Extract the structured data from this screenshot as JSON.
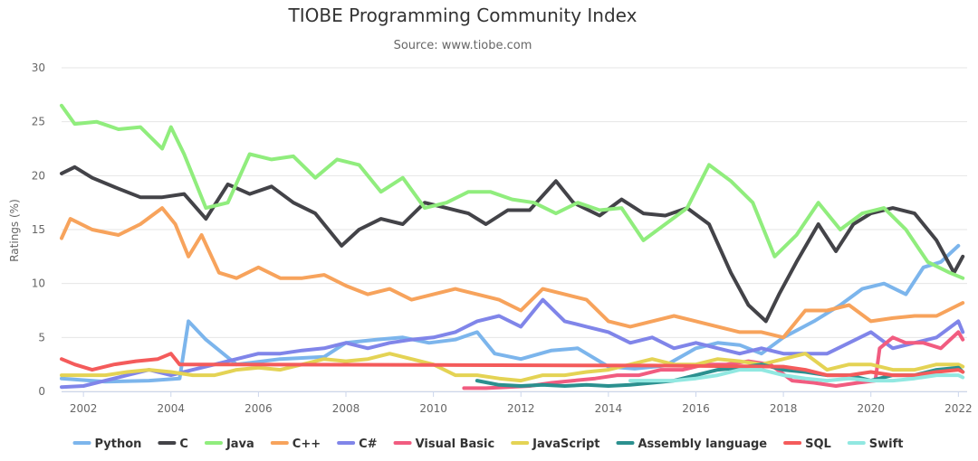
{
  "chart_data": {
    "type": "line",
    "title": "TIOBE Programming Community Index",
    "subtitle": "Source: www.tiobe.com",
    "xlabel": "",
    "ylabel": "Ratings (%)",
    "xlim": [
      2001.5,
      2022.2
    ],
    "ylim": [
      0,
      30
    ],
    "y_ticks": [
      0,
      5,
      10,
      15,
      20,
      25,
      30
    ],
    "x_ticks": [
      2002,
      2004,
      2006,
      2008,
      2010,
      2012,
      2014,
      2016,
      2018,
      2020,
      2022
    ],
    "grid": true,
    "legend_position": "bottom",
    "series": [
      {
        "name": "Python",
        "color": "#7cb5ec",
        "x": [
          2001.5,
          2002.5,
          2003.5,
          2004.2,
          2004.4,
          2004.8,
          2005.5,
          2006.5,
          2007.5,
          2008.0,
          2008.7,
          2009.3,
          2009.9,
          2010.5,
          2011.0,
          2011.4,
          2012.0,
          2012.7,
          2013.3,
          2014.0,
          2014.6,
          2015.3,
          2016.0,
          2016.5,
          2017.0,
          2017.5,
          2018.0,
          2018.7,
          2019.3,
          2019.8,
          2020.3,
          2020.8,
          2021.2,
          2021.6,
          2022.0
        ],
        "y": [
          1.2,
          0.9,
          1.0,
          1.2,
          6.5,
          4.8,
          2.5,
          3.0,
          3.2,
          4.5,
          4.8,
          5.0,
          4.5,
          4.8,
          5.5,
          3.5,
          3.0,
          3.8,
          4.0,
          2.3,
          2.1,
          2.4,
          4.0,
          4.5,
          4.3,
          3.5,
          5.0,
          6.5,
          8.0,
          9.5,
          10.0,
          9.0,
          11.5,
          12.0,
          13.5
        ]
      },
      {
        "name": "C",
        "color": "#434348",
        "x": [
          2001.5,
          2001.8,
          2002.2,
          2002.8,
          2003.3,
          2003.8,
          2004.3,
          2004.8,
          2005.3,
          2005.8,
          2006.3,
          2006.8,
          2007.3,
          2007.9,
          2008.3,
          2008.8,
          2009.3,
          2009.8,
          2010.3,
          2010.8,
          2011.2,
          2011.7,
          2012.2,
          2012.8,
          2013.2,
          2013.8,
          2014.3,
          2014.8,
          2015.3,
          2015.8,
          2016.3,
          2016.8,
          2017.2,
          2017.6,
          2017.9,
          2018.3,
          2018.8,
          2019.2,
          2019.6,
          2020.0,
          2020.5,
          2021.0,
          2021.5,
          2021.9,
          2022.1
        ],
        "y": [
          20.2,
          20.8,
          19.8,
          18.8,
          18.0,
          18.0,
          18.3,
          16.0,
          19.2,
          18.3,
          19.0,
          17.5,
          16.5,
          13.5,
          15.0,
          16.0,
          15.5,
          17.5,
          17.0,
          16.5,
          15.5,
          16.8,
          16.8,
          19.5,
          17.5,
          16.3,
          17.8,
          16.5,
          16.3,
          17.0,
          15.5,
          11.0,
          8.0,
          6.5,
          9.0,
          12.0,
          15.5,
          13.0,
          15.5,
          16.5,
          17.0,
          16.5,
          14.0,
          11.0,
          12.5
        ]
      },
      {
        "name": "Java",
        "color": "#90ed7d",
        "x": [
          2001.5,
          2001.8,
          2002.3,
          2002.8,
          2003.3,
          2003.8,
          2004.0,
          2004.3,
          2004.8,
          2005.3,
          2005.8,
          2006.3,
          2006.8,
          2007.3,
          2007.8,
          2008.3,
          2008.8,
          2009.3,
          2009.8,
          2010.3,
          2010.8,
          2011.3,
          2011.8,
          2012.3,
          2012.8,
          2013.3,
          2013.8,
          2014.3,
          2014.8,
          2015.3,
          2015.8,
          2016.3,
          2016.8,
          2017.3,
          2017.8,
          2018.3,
          2018.8,
          2019.3,
          2019.8,
          2020.3,
          2020.8,
          2021.3,
          2021.8,
          2022.1
        ],
        "y": [
          26.5,
          24.8,
          25.0,
          24.3,
          24.5,
          22.5,
          24.5,
          22.0,
          17.0,
          17.5,
          22.0,
          21.5,
          21.8,
          19.8,
          21.5,
          21.0,
          18.5,
          19.8,
          17.0,
          17.5,
          18.5,
          18.5,
          17.8,
          17.5,
          16.5,
          17.5,
          16.8,
          17.0,
          14.0,
          15.5,
          17.0,
          21.0,
          19.5,
          17.5,
          12.5,
          14.5,
          17.5,
          15.0,
          16.5,
          17.0,
          15.0,
          12.0,
          11.0,
          10.5
        ]
      },
      {
        "name": "C++",
        "color": "#f7a35c",
        "x": [
          2001.5,
          2001.7,
          2002.2,
          2002.8,
          2003.3,
          2003.8,
          2004.1,
          2004.4,
          2004.7,
          2005.1,
          2005.5,
          2006.0,
          2006.5,
          2007.0,
          2007.5,
          2008.0,
          2008.5,
          2009.0,
          2009.5,
          2010.0,
          2010.5,
          2011.0,
          2011.5,
          2012.0,
          2012.5,
          2013.0,
          2013.5,
          2014.0,
          2014.5,
          2015.0,
          2015.5,
          2016.0,
          2016.5,
          2017.0,
          2017.5,
          2018.0,
          2018.5,
          2019.0,
          2019.5,
          2020.0,
          2020.5,
          2021.0,
          2021.5,
          2022.0,
          2022.1
        ],
        "y": [
          14.2,
          16.0,
          15.0,
          14.5,
          15.5,
          17.0,
          15.5,
          12.5,
          14.5,
          11.0,
          10.5,
          11.5,
          10.5,
          10.5,
          10.8,
          9.8,
          9.0,
          9.5,
          8.5,
          9.0,
          9.5,
          9.0,
          8.5,
          7.5,
          9.5,
          9.0,
          8.5,
          6.5,
          6.0,
          6.5,
          7.0,
          6.5,
          6.0,
          5.5,
          5.5,
          5.0,
          7.5,
          7.5,
          8.0,
          6.5,
          6.8,
          7.0,
          7.0,
          8.0,
          8.2
        ]
      },
      {
        "name": "C#",
        "color": "#8085e9",
        "x": [
          2001.5,
          2002.0,
          2002.5,
          2003.0,
          2003.5,
          2004.0,
          2004.5,
          2005.0,
          2005.5,
          2006.0,
          2006.5,
          2007.0,
          2007.5,
          2008.0,
          2008.5,
          2009.0,
          2009.5,
          2010.0,
          2010.5,
          2011.0,
          2011.5,
          2012.0,
          2012.5,
          2013.0,
          2013.5,
          2014.0,
          2014.5,
          2015.0,
          2015.5,
          2016.0,
          2016.5,
          2017.0,
          2017.5,
          2018.0,
          2018.5,
          2019.0,
          2019.5,
          2020.0,
          2020.5,
          2021.0,
          2021.5,
          2022.0,
          2022.1
        ],
        "y": [
          0.4,
          0.5,
          1.0,
          1.5,
          2.0,
          1.5,
          2.0,
          2.5,
          3.0,
          3.5,
          3.5,
          3.8,
          4.0,
          4.5,
          4.0,
          4.5,
          4.8,
          5.0,
          5.5,
          6.5,
          7.0,
          6.0,
          8.5,
          6.5,
          6.0,
          5.5,
          4.5,
          5.0,
          4.0,
          4.5,
          4.0,
          3.5,
          4.0,
          3.5,
          3.5,
          3.5,
          4.5,
          5.5,
          4.0,
          4.5,
          5.0,
          6.5,
          5.5
        ]
      },
      {
        "name": "Visual Basic",
        "color": "#f15c80",
        "x": [
          2010.7,
          2011.2,
          2011.7,
          2012.2,
          2012.7,
          2013.2,
          2013.7,
          2014.2,
          2014.7,
          2015.2,
          2015.7,
          2016.2,
          2016.7,
          2017.2,
          2017.7,
          2018.2,
          2018.7,
          2019.2,
          2019.7,
          2020.1,
          2020.2,
          2020.5,
          2020.8,
          2021.2,
          2021.6,
          2022.0,
          2022.1
        ],
        "y": [
          0.3,
          0.3,
          0.4,
          0.5,
          0.8,
          1.0,
          1.2,
          1.5,
          1.5,
          2.0,
          2.0,
          2.5,
          2.5,
          2.8,
          2.5,
          1.0,
          0.8,
          0.5,
          0.8,
          1.0,
          4.0,
          5.0,
          4.5,
          4.5,
          4.0,
          5.5,
          4.8
        ]
      },
      {
        "name": "JavaScript",
        "color": "#e4d354",
        "x": [
          2001.5,
          2002.0,
          2002.5,
          2003.0,
          2003.5,
          2004.0,
          2004.5,
          2005.0,
          2005.5,
          2006.0,
          2006.5,
          2007.0,
          2007.5,
          2008.0,
          2008.5,
          2009.0,
          2009.5,
          2010.0,
          2010.5,
          2011.0,
          2011.5,
          2012.0,
          2012.5,
          2013.0,
          2013.5,
          2014.0,
          2014.5,
          2015.0,
          2015.5,
          2016.0,
          2016.5,
          2017.0,
          2017.5,
          2018.0,
          2018.5,
          2019.0,
          2019.5,
          2020.0,
          2020.5,
          2021.0,
          2021.5,
          2022.0,
          2022.1
        ],
        "y": [
          1.5,
          1.5,
          1.5,
          1.8,
          2.0,
          1.8,
          1.5,
          1.5,
          2.0,
          2.2,
          2.0,
          2.5,
          3.0,
          2.8,
          3.0,
          3.5,
          3.0,
          2.5,
          1.5,
          1.5,
          1.2,
          1.0,
          1.5,
          1.5,
          1.8,
          2.0,
          2.5,
          3.0,
          2.5,
          2.5,
          3.0,
          2.8,
          2.5,
          3.0,
          3.5,
          2.0,
          2.5,
          2.5,
          2.0,
          2.0,
          2.5,
          2.5,
          2.3
        ]
      },
      {
        "name": "Assembly language",
        "color": "#2b908f",
        "x": [
          2011.0,
          2011.5,
          2012.0,
          2012.5,
          2013.0,
          2013.5,
          2014.0,
          2014.5,
          2015.0,
          2015.5,
          2016.0,
          2016.5,
          2017.0,
          2017.5,
          2018.0,
          2018.5,
          2019.0,
          2019.5,
          2020.0,
          2020.5,
          2021.0,
          2021.5,
          2022.0,
          2022.1
        ],
        "y": [
          1.0,
          0.6,
          0.5,
          0.6,
          0.5,
          0.6,
          0.5,
          0.6,
          0.8,
          1.0,
          1.5,
          2.0,
          2.2,
          2.5,
          2.0,
          1.8,
          1.5,
          1.5,
          1.0,
          1.5,
          1.5,
          2.0,
          2.2,
          1.8
        ]
      },
      {
        "name": "SQL",
        "color": "#f45b5b",
        "x": [
          2001.5,
          2001.8,
          2002.2,
          2002.7,
          2003.2,
          2003.7,
          2004.0,
          2004.2,
          2005.0,
          2010.0,
          2015.0,
          2018.0,
          2018.5,
          2019.0,
          2019.5,
          2020.0,
          2020.5,
          2021.0,
          2021.5,
          2022.0,
          2022.1
        ],
        "y": [
          3.0,
          2.5,
          2.0,
          2.5,
          2.8,
          3.0,
          3.5,
          2.5,
          2.5,
          2.45,
          2.4,
          2.3,
          2.0,
          1.5,
          1.5,
          1.8,
          1.5,
          1.5,
          1.8,
          2.0,
          1.8
        ]
      },
      {
        "name": "Swift",
        "color": "#91e8e1",
        "x": [
          2014.5,
          2015.0,
          2015.5,
          2016.0,
          2016.5,
          2017.0,
          2017.5,
          2018.0,
          2018.5,
          2019.0,
          2019.5,
          2020.0,
          2020.5,
          2021.0,
          2021.5,
          2022.0,
          2022.1
        ],
        "y": [
          1.0,
          1.0,
          1.0,
          1.2,
          1.5,
          2.0,
          2.0,
          1.5,
          1.2,
          1.0,
          1.2,
          1.0,
          1.0,
          1.2,
          1.5,
          1.5,
          1.3
        ]
      }
    ]
  }
}
